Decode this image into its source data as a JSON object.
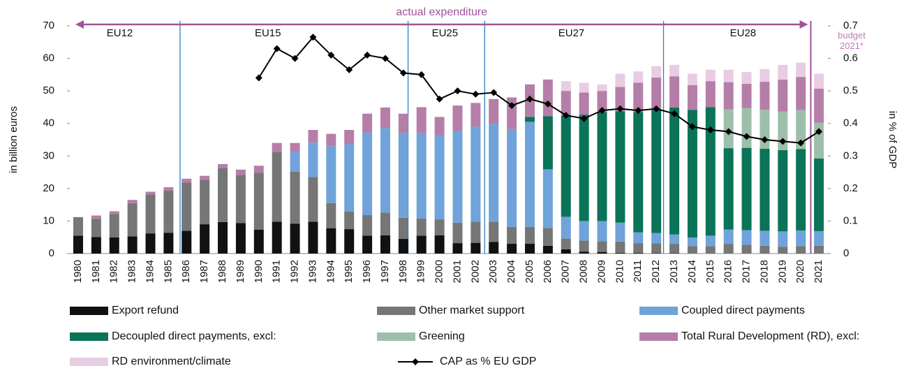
{
  "chart_data": {
    "type": "bar",
    "stacked": true,
    "ylabel": "in billion euros",
    "y2label": "in % of GDP",
    "annotations": {
      "actual": "actual expenditure",
      "budget": "budget\n2021*",
      "eras": [
        "EU12",
        "EU15",
        "EU25",
        "EU27",
        "EU28"
      ]
    },
    "categories": [
      "1980",
      "1981",
      "1982",
      "1983",
      "1984",
      "1985",
      "1986",
      "1987",
      "1988",
      "1989",
      "1990",
      "1991",
      "1992",
      "1993",
      "1994",
      "1995",
      "1996",
      "1997",
      "1998",
      "1999",
      "2000",
      "2001",
      "2002",
      "2003",
      "2004",
      "2005",
      "2006",
      "2007",
      "2008",
      "2009",
      "2010",
      "2011",
      "2012",
      "2013",
      "2014",
      "2015",
      "2016",
      "2017",
      "2018",
      "2019",
      "2020",
      "2021"
    ],
    "ylim": [
      0,
      70
    ],
    "yticks": [
      0,
      10,
      20,
      30,
      40,
      50,
      60,
      70
    ],
    "y2lim": [
      0,
      0.7
    ],
    "y2ticks": [
      0,
      0.1,
      0.2,
      0.3,
      0.4,
      0.5,
      0.6,
      0.7
    ],
    "series": [
      {
        "name": "Export refund",
        "color": "#111111",
        "values": [
          5.5,
          5.1,
          5.0,
          5.3,
          6.2,
          6.4,
          7.0,
          9.0,
          9.7,
          9.4,
          7.3,
          9.8,
          9.2,
          9.8,
          7.8,
          7.5,
          5.5,
          5.6,
          4.5,
          5.5,
          5.6,
          3.2,
          3.3,
          3.6,
          3.0,
          3.0,
          2.4,
          1.3,
          0.6,
          0.5,
          0.2,
          0.2,
          0.1,
          0.1,
          0,
          0,
          0,
          0,
          0,
          0,
          0,
          0
        ]
      },
      {
        "name": "Other market support",
        "color": "#767676",
        "values": [
          5.7,
          5.6,
          7.2,
          10.2,
          12.0,
          13.0,
          14.8,
          13.7,
          16.5,
          14.8,
          17.5,
          21.5,
          16.0,
          13.7,
          7.7,
          5.4,
          6.3,
          7.0,
          6.5,
          5.3,
          4.9,
          6.3,
          6.5,
          6.2,
          5.2,
          5.2,
          5.5,
          3.3,
          3.4,
          3.3,
          3.5,
          3.0,
          3.0,
          2.8,
          2.3,
          2.3,
          2.9,
          2.7,
          2.4,
          2.1,
          2.3,
          2.4
        ]
      },
      {
        "name": "Coupled direct payments",
        "color": "#6fa3d9",
        "values": [
          0,
          0,
          0,
          0,
          0,
          0,
          0,
          0,
          0,
          0,
          0,
          0,
          6.0,
          10.6,
          17.5,
          20.7,
          25.4,
          26.0,
          26.0,
          26.2,
          26.0,
          28.2,
          29.2,
          30.0,
          30.0,
          32.3,
          18.0,
          6.7,
          6.0,
          6.2,
          5.8,
          3.3,
          3.2,
          3.0,
          2.6,
          3.2,
          4.5,
          4.5,
          4.6,
          4.7,
          4.8,
          4.5
        ]
      },
      {
        "name": "Decoupled direct payments, excl:",
        "color": "#0a7358",
        "values": [
          0,
          0,
          0,
          0,
          0,
          0,
          0,
          0,
          0,
          0,
          0,
          0,
          0,
          0,
          0,
          0,
          0,
          0,
          0,
          0,
          0,
          0,
          0,
          0,
          0,
          1.5,
          16.3,
          31.0,
          32.7,
          33.5,
          34.2,
          37.0,
          37.8,
          39.0,
          39.3,
          39.5,
          25.0,
          25.3,
          25.2,
          25.0,
          25.0,
          22.3
        ]
      },
      {
        "name": "Greening",
        "color": "#9dbfa9",
        "values": [
          0,
          0,
          0,
          0,
          0,
          0,
          0,
          0,
          0,
          0,
          0,
          0,
          0,
          0,
          0,
          0,
          0,
          0,
          0,
          0,
          0,
          0,
          0,
          0,
          0,
          0,
          0,
          0,
          0,
          0,
          0,
          0,
          0,
          0,
          0,
          0,
          11.9,
          12.2,
          12.0,
          11.9,
          12.0,
          11.0
        ]
      },
      {
        "name": "Total Rural Development (RD), excl:",
        "color": "#b57ea8",
        "values": [
          0,
          1.0,
          0.8,
          1.0,
          0.8,
          1.0,
          1.2,
          1.2,
          1.3,
          1.6,
          2.2,
          2.7,
          2.8,
          3.9,
          3.8,
          4.4,
          5.8,
          6.3,
          6.0,
          8.0,
          5.5,
          7.8,
          7.3,
          7.7,
          9.8,
          10.0,
          11.3,
          7.7,
          6.8,
          6.5,
          7.5,
          9.0,
          10.0,
          9.6,
          7.6,
          8.0,
          8.4,
          7.5,
          8.6,
          9.8,
          10.2,
          10.5
        ]
      },
      {
        "name": "RD environment/climate",
        "color": "#e8cde2",
        "values": [
          0,
          0,
          0,
          0,
          0,
          0,
          0,
          0,
          0,
          0,
          0,
          0,
          0,
          0,
          0,
          0,
          0,
          0,
          0,
          0,
          0,
          0,
          0,
          0,
          0,
          0,
          0,
          3.0,
          3.0,
          2.0,
          4.1,
          3.5,
          3.5,
          3.5,
          3.5,
          3.5,
          3.8,
          3.6,
          3.9,
          4.5,
          4.4,
          4.6
        ]
      },
      {
        "name": "CAP as % EU GDP",
        "color": "#000000",
        "type": "line",
        "axis": "y2",
        "values": [
          null,
          null,
          null,
          null,
          null,
          null,
          null,
          null,
          null,
          null,
          0.54,
          0.63,
          0.6,
          0.665,
          0.61,
          0.565,
          0.61,
          0.6,
          0.555,
          0.55,
          0.475,
          0.5,
          0.49,
          0.495,
          0.455,
          0.475,
          0.46,
          0.425,
          0.415,
          0.44,
          0.445,
          0.44,
          0.445,
          0.43,
          0.39,
          0.38,
          0.375,
          0.36,
          0.35,
          0.345,
          0.34,
          0.375
        ]
      }
    ]
  }
}
